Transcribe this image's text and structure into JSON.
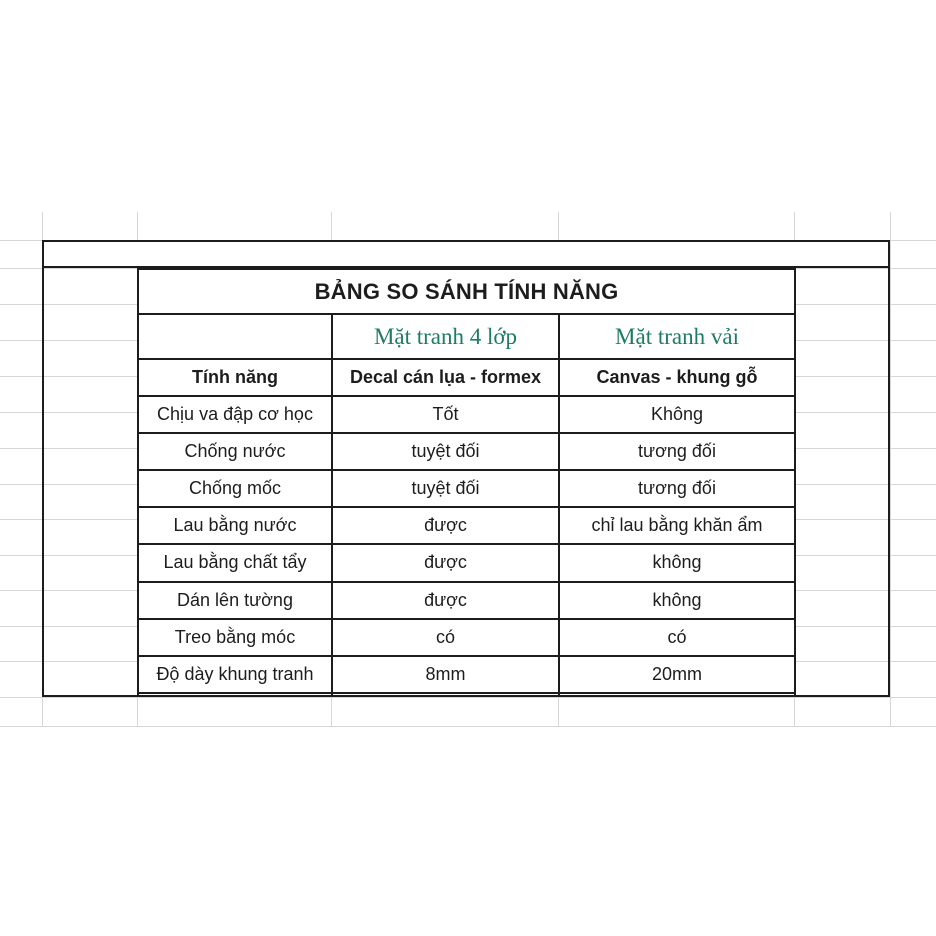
{
  "chart_data": {
    "type": "table",
    "title": "BẢNG SO SÁNH TÍNH NĂNG",
    "group_headers": [
      "",
      "Mặt tranh 4 lớp",
      "Mặt tranh vải"
    ],
    "column_headers": [
      "Tính năng",
      "Decal cán lụa - formex",
      "Canvas - khung gỗ"
    ],
    "rows": [
      [
        "Chịu va đập cơ học",
        "Tốt",
        "Không"
      ],
      [
        "Chống nước",
        "tuyệt đối",
        "tương đối"
      ],
      [
        "Chống mốc",
        "tuyệt đối",
        "tương đối"
      ],
      [
        "Lau bằng nước",
        "được",
        "chỉ lau bằng khăn ẩm"
      ],
      [
        "Lau bằng chất tẩy",
        "được",
        "không"
      ],
      [
        "Dán lên tường",
        "được",
        "không"
      ],
      [
        "Treo bằng móc",
        "có",
        "có"
      ],
      [
        "Độ dày khung tranh",
        "8mm",
        "20mm"
      ]
    ],
    "layout_hints": {
      "grid": "faint spreadsheet gridlines visible around table",
      "title_merged_across_columns": true,
      "empty_bordered_row_above_table": true,
      "empty_bordered_row_below_table": true
    },
    "colors": {
      "group_header_green": "#1e7b64",
      "border_black": "#1c1c1c",
      "gridline_gray": "#d6d6d6",
      "background": "#ffffff"
    }
  }
}
